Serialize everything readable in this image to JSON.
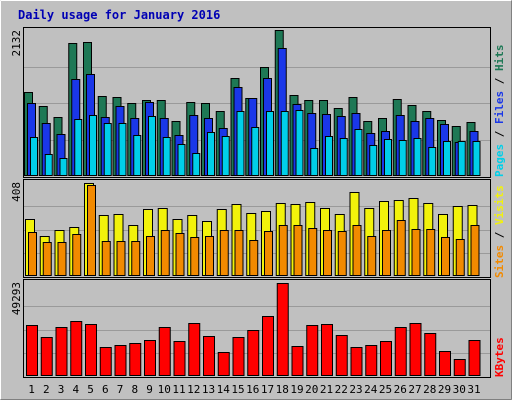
{
  "chart_data": [
    {
      "type": "bar",
      "title": "Daily usage for January 2016",
      "categories": [
        "1",
        "2",
        "3",
        "4",
        "5",
        "6",
        "7",
        "8",
        "9",
        "10",
        "11",
        "12",
        "13",
        "14",
        "15",
        "16",
        "17",
        "18",
        "19",
        "20",
        "21",
        "22",
        "23",
        "24",
        "25",
        "26",
        "27",
        "28",
        "29",
        "30",
        "31"
      ],
      "ymax_label": "2132",
      "ylim": [
        0,
        2132
      ],
      "legend": [
        "Pages",
        "Files",
        "Hits"
      ],
      "series": [
        {
          "name": "Hits",
          "color": "#1e7855",
          "values": [
            1232,
            1025,
            859,
            1943,
            1960,
            1161,
            1157,
            1071,
            1103,
            1105,
            806,
            1076,
            1065,
            942,
            1437,
            1136,
            1587,
            2132,
            1184,
            1111,
            1108,
            991,
            1147,
            805,
            843,
            1126,
            1043,
            945,
            813,
            737,
            782
          ]
        },
        {
          "name": "Files",
          "color": "#1a37e8",
          "values": [
            1071,
            775,
            607,
            1410,
            1489,
            862,
            1025,
            848,
            1085,
            848,
            604,
            898,
            847,
            697,
            1296,
            1138,
            1436,
            1864,
            1053,
            915,
            907,
            869,
            917,
            629,
            657,
            897,
            808,
            852,
            754,
            500,
            655
          ]
        },
        {
          "name": "Pages",
          "color": "#00cfe9",
          "values": [
            564,
            314,
            270,
            831,
            891,
            779,
            775,
            596,
            875,
            571,
            465,
            332,
            643,
            578,
            953,
            711,
            946,
            950,
            967,
            406,
            584,
            561,
            692,
            448,
            533,
            529,
            550,
            418,
            507,
            505,
            505
          ]
        }
      ]
    },
    {
      "type": "bar",
      "ymax_label": "408",
      "ylim": [
        0,
        408
      ],
      "legend": [
        "Sites",
        "Visits"
      ],
      "series": [
        {
          "name": "Visits",
          "color": "#f2f20b",
          "values": [
            249,
            175,
            202,
            214,
            408,
            268,
            271,
            223,
            293,
            298,
            252,
            268,
            243,
            295,
            317,
            275,
            283,
            322,
            318,
            323,
            300,
            272,
            369,
            300,
            328,
            334,
            342,
            319,
            271,
            308,
            310
          ]
        },
        {
          "name": "Sites",
          "color": "#f28a00",
          "values": [
            193,
            150,
            148,
            185,
            398,
            155,
            152,
            153,
            174,
            200,
            187,
            172,
            174,
            202,
            201,
            157,
            199,
            224,
            222,
            209,
            202,
            196,
            223,
            176,
            200,
            245,
            206,
            204,
            171,
            164,
            222
          ]
        }
      ]
    },
    {
      "type": "bar",
      "ymax_label": "49293",
      "ylim": [
        0,
        49293
      ],
      "legend": [
        "KBytes"
      ],
      "series": [
        {
          "name": "KBytes",
          "color": "#ff0000",
          "values": [
            27185,
            20808,
            25872,
            29009,
            27811,
            15129,
            16472,
            17731,
            18982,
            26140,
            18770,
            28348,
            21164,
            12683,
            20883,
            24316,
            31981,
            49293,
            15984,
            27136,
            27553,
            21474,
            15129,
            16250,
            18806,
            25872,
            27980,
            23001,
            13421,
            9000,
            18975
          ]
        }
      ]
    }
  ]
}
